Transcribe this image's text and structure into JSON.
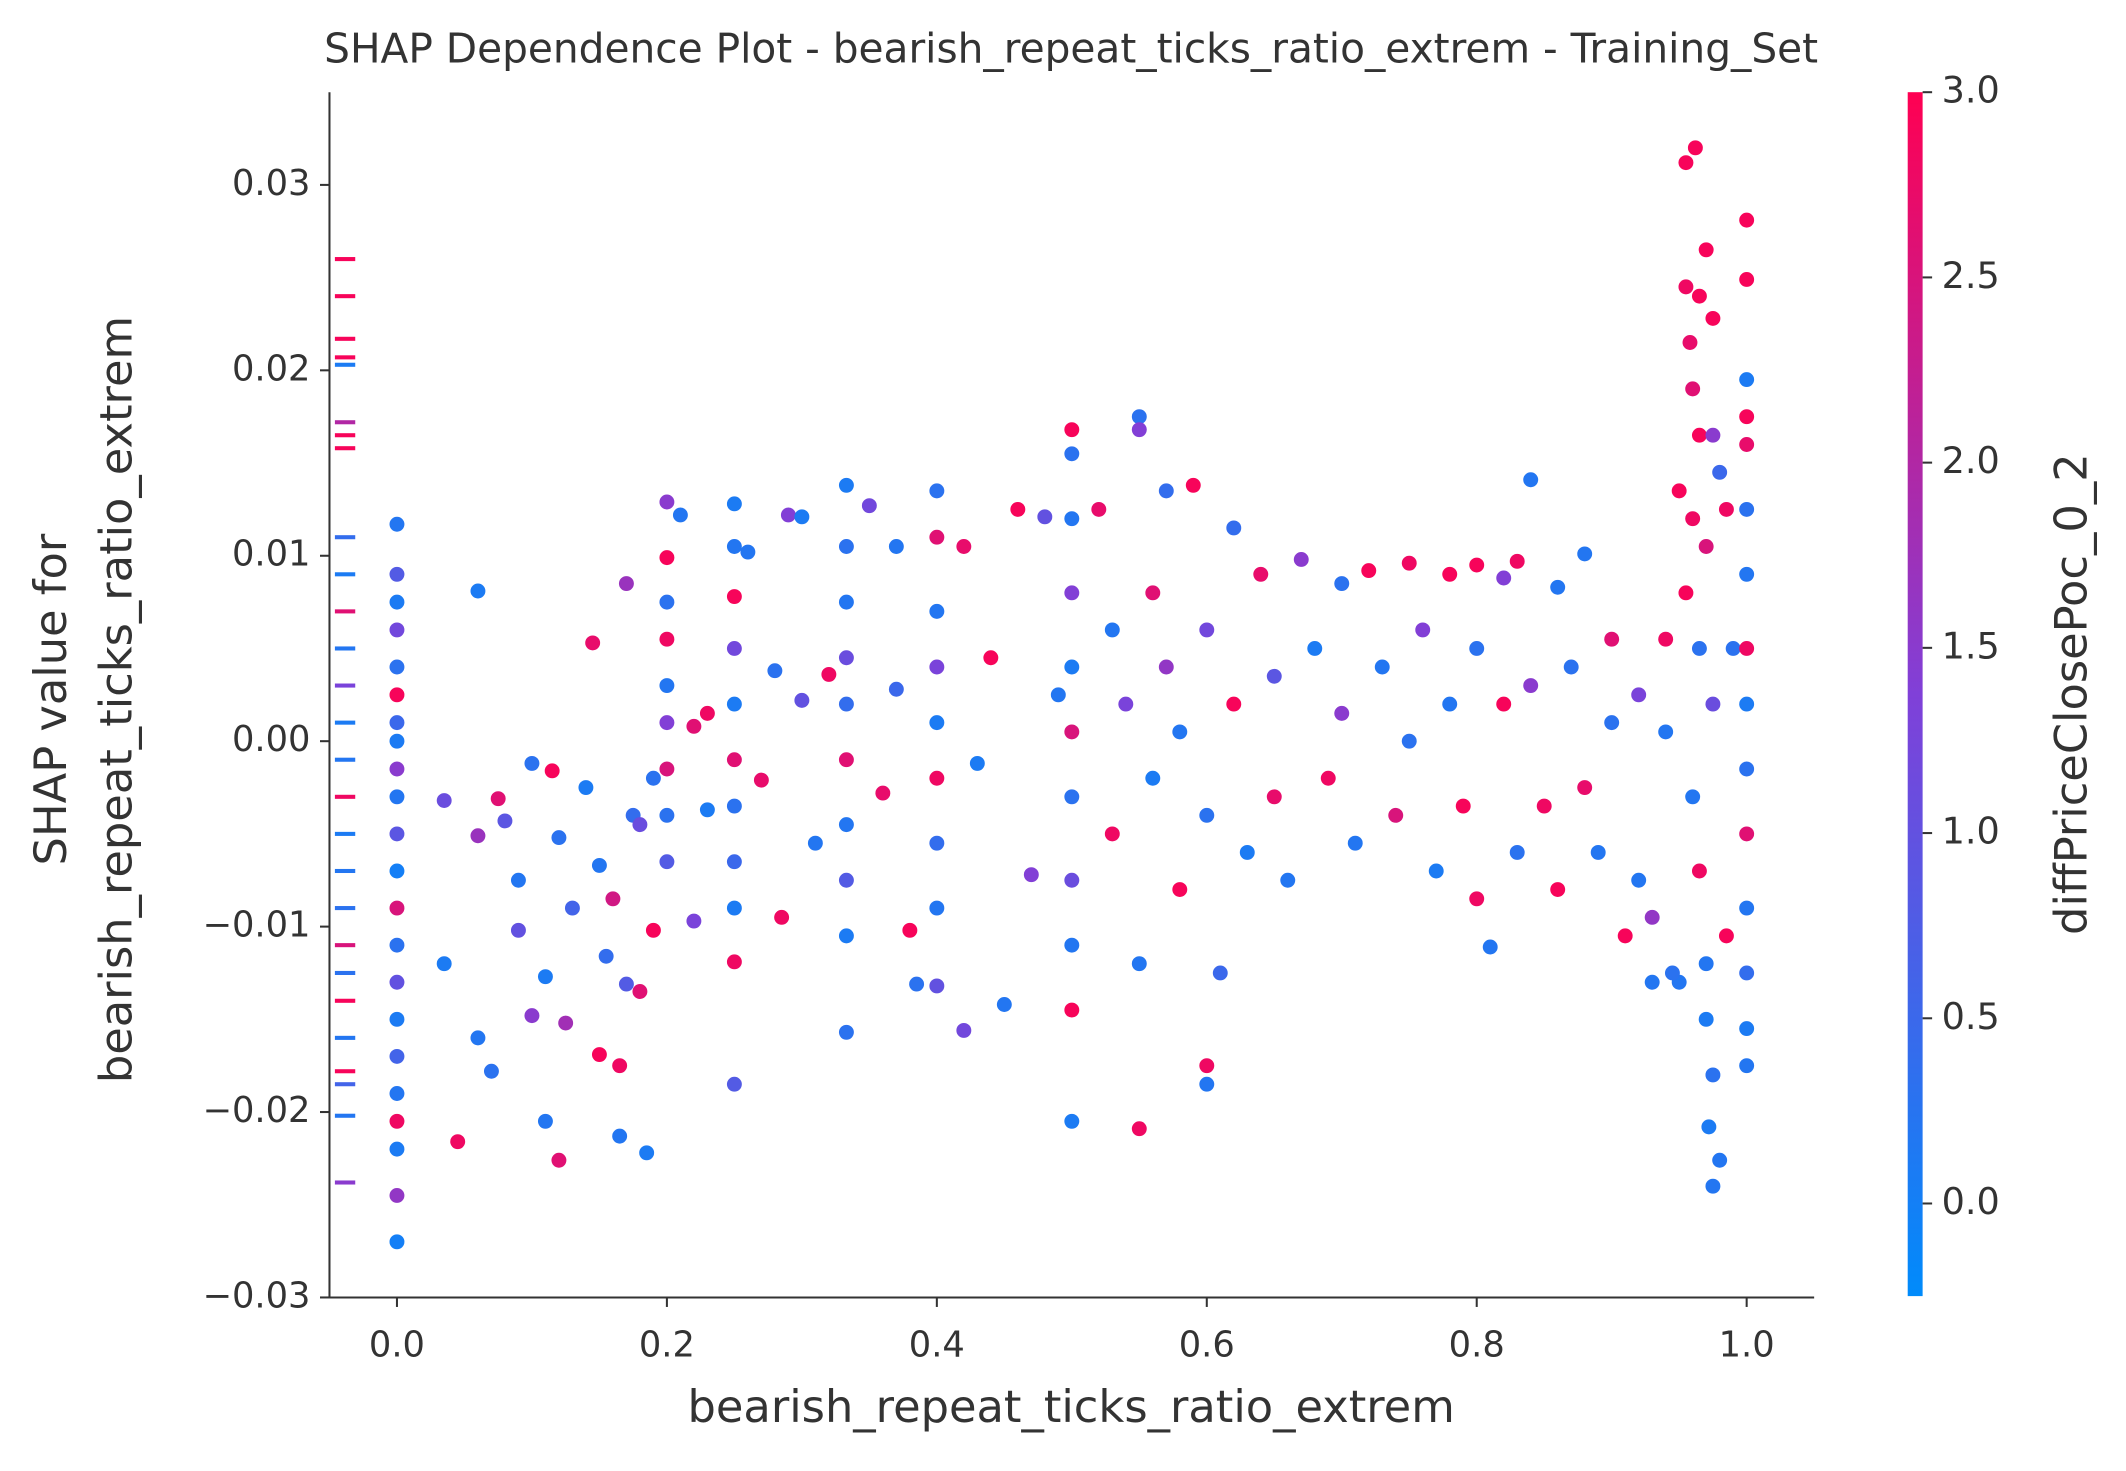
{
  "chart_data": {
    "type": "scatter",
    "title": "SHAP Dependence Plot - bearish_repeat_ticks_ratio_extrem - Training_Set",
    "xlabel": "bearish_repeat_ticks_ratio_extrem",
    "ylabel": [
      "SHAP value for",
      "bearish_repeat_ticks_ratio_extrem"
    ],
    "xlim": [
      -0.05,
      1.05
    ],
    "ylim": [
      -0.03,
      0.035
    ],
    "xticks": [
      {
        "value": 0,
        "label": "0.0"
      },
      {
        "value": 0.2,
        "label": "0.2"
      },
      {
        "value": 0.4,
        "label": "0.4"
      },
      {
        "value": 0.6,
        "label": "0.6"
      },
      {
        "value": 0.8,
        "label": "0.8"
      },
      {
        "value": 1,
        "label": "1.0"
      }
    ],
    "yticks": [
      {
        "value": -0.03,
        "label": "−0.03"
      },
      {
        "value": -0.02,
        "label": "−0.02"
      },
      {
        "value": -0.01,
        "label": "−0.01"
      },
      {
        "value": 0,
        "label": "0.00"
      },
      0.01,
      0.02,
      0.03
    ],
    "grid": false,
    "colorbar": {
      "label": "diffPriceClosePoc_0_2",
      "lim": [
        -0.25,
        3.0
      ],
      "colors": [
        "#008bfb",
        "#8040d8",
        "#ff0052"
      ],
      "ticks": [
        {
          "value": 0,
          "label": "0.0"
        },
        {
          "value": 0.5,
          "label": "0.5"
        },
        {
          "value": 1,
          "label": "1.0"
        },
        {
          "value": 1.5,
          "label": "1.5"
        },
        {
          "value": 2,
          "label": "2.0"
        },
        {
          "value": 2.5,
          "label": "2.5"
        },
        {
          "value": 3,
          "label": "3.0"
        }
      ]
    },
    "x": [
      0,
      0,
      0,
      0,
      0,
      0,
      0,
      0,
      0,
      0,
      0,
      0,
      0,
      0,
      0,
      0,
      0,
      0,
      0,
      0,
      0,
      0,
      0.035,
      0.035,
      0.045,
      0.06,
      0.06,
      0.06,
      0.07,
      0.075,
      0.08,
      0.09,
      0.09,
      0.1,
      0.1,
      0.11,
      0.11,
      0.115,
      0.12,
      0.12,
      0.125,
      0.13,
      0.14,
      0.145,
      0.15,
      0.15,
      0.155,
      0.16,
      0.165,
      0.165,
      0.17,
      0.17,
      0.175,
      0.18,
      0.18,
      0.185,
      0.19,
      0.19,
      0.2,
      0.2,
      0.2,
      0.2,
      0.2,
      0.2,
      0.2,
      0.2,
      0.2,
      0.21,
      0.22,
      0.22,
      0.23,
      0.23,
      0.25,
      0.25,
      0.25,
      0.25,
      0.25,
      0.25,
      0.25,
      0.25,
      0.25,
      0.25,
      0.25,
      0.26,
      0.27,
      0.28,
      0.285,
      0.29,
      0.3,
      0.3,
      0.31,
      0.32,
      0.333,
      0.333,
      0.333,
      0.333,
      0.333,
      0.333,
      0.333,
      0.333,
      0.333,
      0.333,
      0.35,
      0.36,
      0.37,
      0.37,
      0.38,
      0.385,
      0.4,
      0.4,
      0.4,
      0.4,
      0.4,
      0.4,
      0.4,
      0.4,
      0.4,
      0.42,
      0.42,
      0.43,
      0.44,
      0.45,
      0.46,
      0.47,
      0.48,
      0.49,
      0.5,
      0.5,
      0.5,
      0.5,
      0.5,
      0.5,
      0.5,
      0.5,
      0.5,
      0.5,
      0.5,
      0.52,
      0.53,
      0.53,
      0.54,
      0.55,
      0.55,
      0.55,
      0.55,
      0.56,
      0.56,
      0.57,
      0.57,
      0.58,
      0.58,
      0.59,
      0.6,
      0.6,
      0.6,
      0.6,
      0.61,
      0.62,
      0.62,
      0.63,
      0.64,
      0.65,
      0.65,
      0.66,
      0.67,
      0.68,
      0.69,
      0.7,
      0.7,
      0.71,
      0.72,
      0.73,
      0.74,
      0.75,
      0.75,
      0.76,
      0.77,
      0.78,
      0.78,
      0.79,
      0.8,
      0.8,
      0.8,
      0.81,
      0.82,
      0.82,
      0.83,
      0.83,
      0.84,
      0.84,
      0.85,
      0.86,
      0.86,
      0.87,
      0.88,
      0.88,
      0.89,
      0.9,
      0.9,
      0.91,
      0.92,
      0.92,
      0.93,
      0.93,
      0.94,
      0.94,
      0.955,
      0.962,
      0.955,
      0.965,
      0.958,
      0.97,
      0.96,
      0.965,
      0.975,
      0.95,
      0.96,
      0.97,
      0.975,
      0.98,
      0.955,
      0.965,
      0.975,
      0.96,
      0.965,
      0.97,
      0.97,
      0.975,
      0.972,
      0.98,
      0.975,
      0.985,
      0.99,
      0.985,
      0.95,
      0.945,
      1,
      1,
      1,
      1,
      1,
      1,
      1,
      1,
      1,
      1,
      1,
      1,
      1,
      1,
      1,
      null,
      null,
      null,
      null,
      null,
      null,
      null,
      null,
      null,
      null,
      null,
      null,
      null,
      null,
      null,
      null,
      null,
      null,
      null,
      null,
      null,
      null,
      null,
      null,
      null,
      null,
      null
    ],
    "values": [
      0.0117,
      0.009,
      0.0075,
      0.006,
      0.004,
      0.0025,
      0.001,
      0,
      -0.0015,
      -0.003,
      -0.005,
      -0.007,
      -0.009,
      -0.011,
      -0.013,
      -0.015,
      -0.017,
      -0.019,
      -0.0205,
      -0.022,
      -0.0245,
      -0.027,
      -0.0032,
      -0.012,
      -0.0216,
      0.0081,
      -0.016,
      -0.0051,
      -0.0178,
      -0.0031,
      -0.0043,
      -0.0102,
      -0.0075,
      -0.0012,
      -0.0148,
      -0.0205,
      -0.0127,
      -0.0016,
      -0.0226,
      -0.0052,
      -0.0152,
      -0.009,
      -0.0025,
      0.0053,
      -0.0169,
      -0.0067,
      -0.0116,
      -0.0085,
      -0.0175,
      -0.0213,
      0.0085,
      -0.0131,
      -0.004,
      -0.0135,
      -0.0045,
      -0.0222,
      -0.0102,
      -0.002,
      0.0129,
      0.0099,
      0.0075,
      0.0055,
      0.003,
      0.001,
      -0.0015,
      -0.004,
      -0.0065,
      0.0122,
      0.0008,
      -0.0097,
      0.0015,
      -0.0037,
      0.0128,
      0.0105,
      0.0078,
      0.005,
      0.002,
      -0.001,
      -0.0035,
      -0.0065,
      -0.009,
      -0.0119,
      -0.0185,
      0.0102,
      -0.0021,
      0.0038,
      -0.0095,
      0.0122,
      0.0121,
      0.0022,
      -0.0055,
      0.0036,
      0.0138,
      0.0105,
      0.0075,
      0.0045,
      0.002,
      -0.001,
      -0.0045,
      -0.0075,
      -0.0105,
      -0.0157,
      0.0127,
      -0.0028,
      0.0105,
      0.0028,
      -0.0102,
      -0.0131,
      0.0135,
      0.011,
      0.007,
      0.004,
      0.001,
      -0.002,
      -0.0055,
      -0.009,
      -0.0132,
      -0.0156,
      0.0105,
      -0.0012,
      0.0045,
      -0.0142,
      0.0125,
      -0.0072,
      0.0121,
      0.0025,
      0.0168,
      0.0155,
      0.012,
      0.008,
      0.004,
      0.0005,
      -0.003,
      -0.0075,
      -0.011,
      -0.0145,
      -0.0205,
      0.0125,
      0.006,
      -0.005,
      0.002,
      0.0175,
      0.0168,
      -0.0209,
      -0.012,
      0.008,
      -0.002,
      0.0135,
      0.004,
      -0.008,
      0.0005,
      0.0138,
      -0.0175,
      -0.0185,
      0.006,
      -0.004,
      -0.0125,
      0.0115,
      0.002,
      -0.006,
      0.009,
      0.0035,
      -0.003,
      -0.0075,
      0.0098,
      0.005,
      -0.002,
      0.0085,
      0.0015,
      -0.0055,
      0.0092,
      0.004,
      -0.004,
      0.0096,
      0,
      0.006,
      -0.007,
      0.009,
      0.002,
      -0.0035,
      0.0095,
      0.005,
      -0.0085,
      -0.0111,
      0.0088,
      0.002,
      0.0097,
      -0.006,
      0.0141,
      0.003,
      -0.0035,
      0.0083,
      -0.008,
      0.004,
      0.0101,
      -0.0025,
      -0.006,
      0.0055,
      0.001,
      -0.0105,
      0.0025,
      -0.0075,
      -0.013,
      -0.0095,
      0.0055,
      0.0005,
      0.0312,
      0.032,
      0.0245,
      0.024,
      0.0215,
      0.0265,
      0.019,
      0.0165,
      0.0228,
      0.0135,
      0.012,
      0.0105,
      0.0165,
      0.0145,
      0.008,
      0.005,
      0.002,
      -0.003,
      -0.007,
      -0.012,
      -0.015,
      -0.018,
      -0.0208,
      -0.0226,
      -0.024,
      -0.0105,
      0.005,
      0.0125,
      -0.013,
      -0.0125,
      0.0281,
      0.0249,
      0.0195,
      0.0175,
      0.016,
      0.0125,
      0.009,
      0.005,
      0.002,
      -0.0015,
      -0.005,
      -0.009,
      -0.0125,
      -0.0155,
      -0.0175,
      0.026,
      0.024,
      0.0217,
      0.0207,
      0.0203,
      0.0172,
      0.0165,
      0.0158,
      0.011,
      0.009,
      0.007,
      0.005,
      0.003,
      0.001,
      -0.001,
      -0.003,
      -0.005,
      -0.007,
      -0.009,
      -0.011,
      -0.0125,
      -0.014,
      -0.016,
      -0.0178,
      -0.0185,
      -0.0202,
      -0.0238
    ],
    "color_values": [
      0.2,
      0.8,
      0.1,
      1.2,
      0.3,
      2.9,
      0.5,
      0.1,
      1.5,
      0.2,
      0.9,
      0.0,
      2.5,
      0.3,
      1.0,
      0.1,
      0.6,
      0.2,
      2.8,
      0.1,
      1.6,
      0.0,
      1.1,
      0.1,
      2.8,
      0.1,
      0.2,
      1.7,
      0.3,
      2.6,
      0.9,
      1.0,
      0.2,
      0.3,
      1.5,
      0.2,
      0.1,
      2.9,
      2.6,
      0.3,
      1.8,
      0.6,
      0.1,
      2.7,
      2.9,
      0.2,
      0.4,
      2.4,
      2.8,
      0.2,
      1.7,
      0.8,
      0.4,
      2.6,
      1.1,
      0.1,
      2.9,
      0.3,
      1.5,
      2.9,
      0.3,
      2.8,
      0.2,
      1.4,
      2.5,
      0.3,
      0.8,
      0.2,
      2.6,
      1.3,
      2.8,
      0.1,
      0.1,
      0.2,
      2.9,
      1.2,
      0.1,
      2.6,
      0.3,
      0.5,
      0.1,
      2.8,
      0.8,
      0.2,
      2.7,
      0.3,
      2.8,
      1.4,
      0.1,
      1.0,
      0.2,
      2.8,
      0.1,
      0.3,
      0.2,
      1.1,
      0.4,
      2.6,
      0.2,
      0.8,
      0.1,
      0.3,
      1.2,
      2.7,
      0.2,
      0.5,
      2.9,
      0.3,
      0.3,
      2.6,
      0.2,
      1.3,
      0.1,
      2.8,
      0.4,
      0.2,
      1.0,
      1.2,
      2.7,
      0.1,
      2.9,
      0.2,
      2.9,
      1.4,
      1.0,
      0.2,
      2.9,
      0.3,
      0.2,
      1.4,
      0.1,
      2.5,
      0.3,
      1.1,
      0.2,
      2.9,
      0.1,
      2.7,
      0.2,
      2.8,
      1.3,
      0.3,
      1.4,
      2.8,
      0.2,
      2.6,
      0.1,
      0.4,
      1.6,
      2.9,
      0.2,
      2.9,
      2.8,
      0.2,
      1.2,
      0.3,
      0.5,
      0.4,
      2.9,
      0.1,
      2.7,
      0.9,
      2.7,
      0.2,
      1.5,
      0.1,
      2.8,
      0.3,
      1.5,
      0.2,
      2.9,
      0.2,
      2.5,
      2.8,
      0.3,
      1.4,
      0.1,
      2.9,
      0.2,
      2.9,
      2.9,
      0.3,
      2.8,
      0.2,
      1.4,
      2.9,
      2.8,
      0.3,
      0.2,
      1.5,
      2.8,
      0.2,
      2.9,
      0.3,
      0.2,
      2.7,
      0.2,
      2.6,
      0.3,
      2.9,
      1.3,
      0.2,
      0.2,
      1.6,
      2.8,
      0.2,
      2.9,
      2.9,
      2.8,
      2.9,
      2.7,
      2.9,
      2.6,
      2.9,
      2.9,
      2.9,
      2.8,
      2.5,
      1.5,
      0.5,
      2.9,
      0.3,
      1.1,
      0.2,
      2.8,
      0.2,
      0.1,
      0.3,
      0.1,
      0.2,
      0.2,
      2.9,
      0.3,
      2.8,
      0.2,
      0.3,
      2.9,
      2.9,
      0.1,
      2.9,
      2.7,
      0.3,
      0.2,
      2.8,
      0.1,
      0.3,
      2.6,
      0.2,
      0.4,
      0.1,
      0.2,
      2.9,
      2.9,
      2.9,
      2.9,
      0.1,
      2.0,
      2.9,
      2.9,
      0.4,
      0.1,
      2.6,
      0.2,
      1.3,
      0.1,
      0.2,
      2.8,
      0.1,
      0.2,
      0.3,
      2.5,
      0.3,
      2.9,
      0.2,
      2.9,
      0.6,
      0.2,
      1.5
    ]
  }
}
